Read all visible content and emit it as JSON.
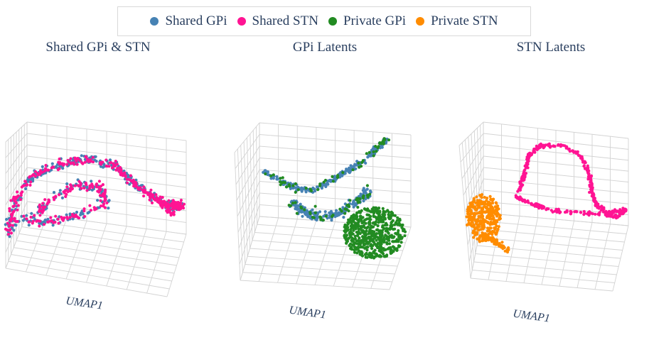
{
  "legend": {
    "items": [
      {
        "label": "Shared GPi",
        "color": "#4682b4"
      },
      {
        "label": "Shared STN",
        "color": "#ff1493"
      },
      {
        "label": "Private GPi",
        "color": "#228b22"
      },
      {
        "label": "Private STN",
        "color": "#ff8c00"
      }
    ]
  },
  "chart_data": [
    {
      "type": "scatter",
      "title": "Shared GPi & STN",
      "xlabel": "UMAP1",
      "series": [
        {
          "name": "Shared GPi",
          "color": "#4682b4"
        },
        {
          "name": "Shared STN",
          "color": "#ff1493"
        }
      ],
      "grid": true
    },
    {
      "type": "scatter",
      "title": "GPi Latents",
      "xlabel": "UMAP1",
      "series": [
        {
          "name": "Shared GPi",
          "color": "#4682b4"
        },
        {
          "name": "Private GPi",
          "color": "#228b22"
        }
      ],
      "grid": true
    },
    {
      "type": "scatter",
      "title": "STN Latents",
      "xlabel": "UMAP1",
      "series": [
        {
          "name": "Shared STN",
          "color": "#ff1493"
        },
        {
          "name": "Private STN",
          "color": "#ff8c00"
        }
      ],
      "grid": true
    }
  ]
}
